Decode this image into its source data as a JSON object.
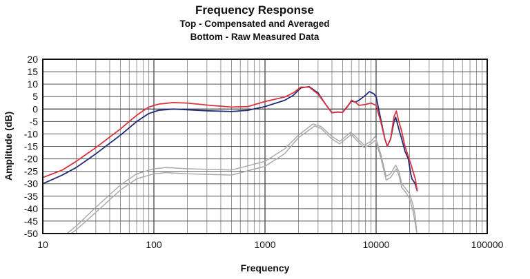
{
  "chart_data": {
    "type": "line",
    "title": "Frequency Response",
    "subtitle_lines": [
      "Top -  Compensated and Averaged",
      "Bottom - Raw Measured Data"
    ],
    "xlabel": "Frequency",
    "ylabel": "Amplitude (dB)",
    "x_scale": "log",
    "xlim": [
      10,
      100000
    ],
    "ylim": [
      -50,
      20
    ],
    "x_ticks": [
      "10",
      "100",
      "1000",
      "10000",
      "100000"
    ],
    "y_ticks": [
      "20",
      "15",
      "10",
      "5",
      "0",
      "-5",
      "-10",
      "-15",
      "-20",
      "-25",
      "-30",
      "-35",
      "-40",
      "-45",
      "-50"
    ],
    "grid": true,
    "legend": "none",
    "series": [
      {
        "color": "#d8323c",
        "points": [
          [
            10,
            -27.5
          ],
          [
            15,
            -24.5
          ],
          [
            20,
            -21
          ],
          [
            30,
            -15.5
          ],
          [
            50,
            -8
          ],
          [
            70,
            -2.5
          ],
          [
            90,
            0.8
          ],
          [
            110,
            2
          ],
          [
            150,
            2.6
          ],
          [
            200,
            2.4
          ],
          [
            300,
            1.6
          ],
          [
            500,
            0.8
          ],
          [
            700,
            1
          ],
          [
            1000,
            3
          ],
          [
            1500,
            4.8
          ],
          [
            1800,
            6.5
          ],
          [
            2100,
            8.8
          ],
          [
            2500,
            8.8
          ],
          [
            3000,
            6
          ],
          [
            3500,
            2
          ],
          [
            4000,
            -1.5
          ],
          [
            4500,
            -1.2
          ],
          [
            5000,
            -1.3
          ],
          [
            5500,
            0.8
          ],
          [
            6000,
            3.5
          ],
          [
            6500,
            2.8
          ],
          [
            7000,
            1.5
          ],
          [
            8000,
            1.8
          ],
          [
            9000,
            2.4
          ],
          [
            10000,
            1.5
          ],
          [
            11000,
            -5
          ],
          [
            12000,
            -12
          ],
          [
            12600,
            -14.8
          ],
          [
            13500,
            -12
          ],
          [
            14500,
            -3
          ],
          [
            15200,
            -0.8
          ],
          [
            16000,
            -5
          ],
          [
            17000,
            -9
          ],
          [
            18200,
            -15
          ],
          [
            19500,
            -19
          ],
          [
            21000,
            -23.5
          ],
          [
            22500,
            -28
          ],
          [
            23500,
            -33
          ]
        ]
      },
      {
        "color": "#1e2a78",
        "points": [
          [
            10,
            -30
          ],
          [
            15,
            -26.5
          ],
          [
            20,
            -23.5
          ],
          [
            30,
            -18
          ],
          [
            50,
            -10.5
          ],
          [
            70,
            -5
          ],
          [
            90,
            -1.8
          ],
          [
            110,
            -0.5
          ],
          [
            150,
            0
          ],
          [
            200,
            -0.3
          ],
          [
            300,
            -0.7
          ],
          [
            500,
            -1
          ],
          [
            700,
            -0.5
          ],
          [
            1000,
            1
          ],
          [
            1500,
            3.5
          ],
          [
            1800,
            5.5
          ],
          [
            2100,
            8.5
          ],
          [
            2500,
            9
          ],
          [
            3000,
            6.5
          ],
          [
            3500,
            2
          ],
          [
            4000,
            -1.5
          ],
          [
            4500,
            -1.2
          ],
          [
            5000,
            -1.3
          ],
          [
            5500,
            1
          ],
          [
            6000,
            3.2
          ],
          [
            6500,
            2.8
          ],
          [
            7000,
            3.5
          ],
          [
            8000,
            5.5
          ],
          [
            8700,
            7
          ],
          [
            9500,
            6.2
          ],
          [
            10000,
            5
          ],
          [
            11000,
            -4
          ],
          [
            12000,
            -12
          ],
          [
            12600,
            -15
          ],
          [
            13500,
            -12
          ],
          [
            14500,
            -5
          ],
          [
            15000,
            -3.3
          ],
          [
            16000,
            -8
          ],
          [
            17000,
            -12
          ],
          [
            18200,
            -17
          ],
          [
            19500,
            -20
          ],
          [
            20500,
            -26
          ],
          [
            21000,
            -28
          ],
          [
            22500,
            -30
          ],
          [
            23500,
            -33
          ]
        ]
      },
      {
        "color": "#aaaaaa",
        "points": [
          [
            16.5,
            -50
          ],
          [
            20,
            -47
          ],
          [
            30,
            -39.5
          ],
          [
            50,
            -30.5
          ],
          [
            70,
            -26
          ],
          [
            100,
            -24
          ],
          [
            130,
            -23.5
          ],
          [
            200,
            -24
          ],
          [
            500,
            -24.5
          ],
          [
            1000,
            -21
          ],
          [
            1500,
            -16
          ],
          [
            2000,
            -10.5
          ],
          [
            2700,
            -6
          ],
          [
            3200,
            -7
          ],
          [
            4000,
            -11
          ],
          [
            4700,
            -13
          ],
          [
            5500,
            -10.5
          ],
          [
            5900,
            -9.3
          ],
          [
            6500,
            -11
          ],
          [
            7800,
            -14.5
          ],
          [
            9000,
            -13
          ],
          [
            9800,
            -11
          ],
          [
            11000,
            -18
          ],
          [
            12300,
            -27
          ],
          [
            13500,
            -26
          ],
          [
            15000,
            -22.5
          ],
          [
            16000,
            -25
          ],
          [
            17000,
            -30
          ],
          [
            18500,
            -32
          ],
          [
            20000,
            -34
          ],
          [
            21500,
            -38.5
          ],
          [
            22500,
            -43
          ],
          [
            23300,
            -50
          ]
        ]
      },
      {
        "color": "#aaaaaa",
        "points": [
          [
            18,
            -50
          ],
          [
            20,
            -48.5
          ],
          [
            30,
            -41.5
          ],
          [
            50,
            -32.5
          ],
          [
            70,
            -28
          ],
          [
            100,
            -26
          ],
          [
            130,
            -25.5
          ],
          [
            200,
            -26
          ],
          [
            500,
            -26.5
          ],
          [
            1000,
            -23
          ],
          [
            1500,
            -18
          ],
          [
            2000,
            -11.5
          ],
          [
            2800,
            -6.8
          ],
          [
            3200,
            -7.8
          ],
          [
            4000,
            -12
          ],
          [
            4700,
            -14
          ],
          [
            5500,
            -11.5
          ],
          [
            6000,
            -10.2
          ],
          [
            6500,
            -12
          ],
          [
            7800,
            -15.5
          ],
          [
            9000,
            -14
          ],
          [
            9900,
            -12.5
          ],
          [
            11000,
            -19.5
          ],
          [
            12300,
            -28.5
          ],
          [
            13500,
            -27.5
          ],
          [
            15200,
            -24
          ],
          [
            16000,
            -26.5
          ],
          [
            17000,
            -31.5
          ],
          [
            18500,
            -33.5
          ],
          [
            20000,
            -36
          ],
          [
            21500,
            -41
          ],
          [
            22500,
            -46
          ],
          [
            23300,
            -50
          ]
        ]
      }
    ]
  }
}
